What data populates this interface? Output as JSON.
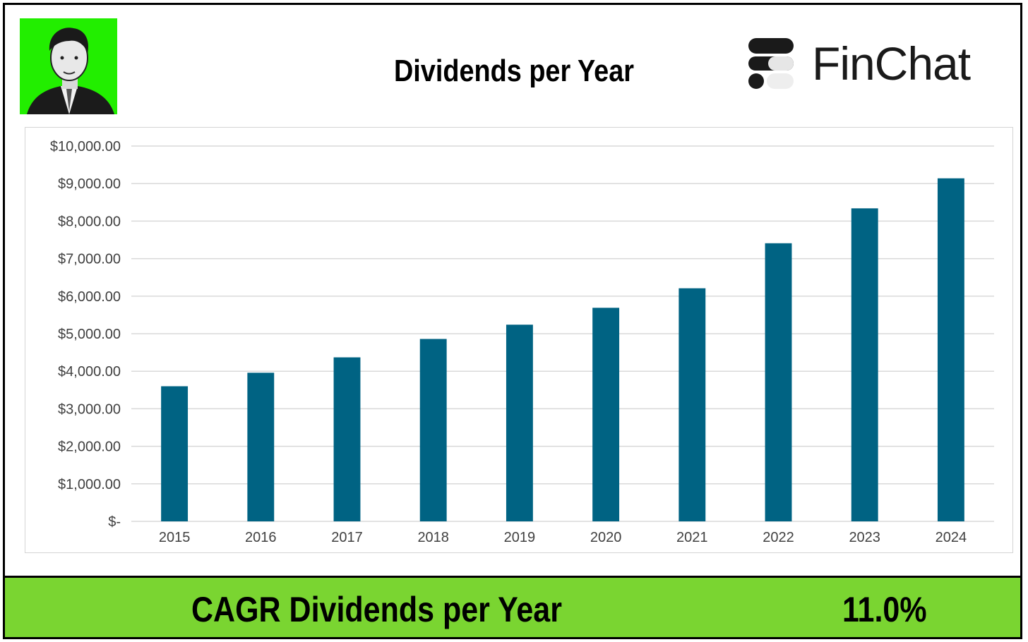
{
  "header": {
    "title": "Dividends per Year",
    "brand": "FinChat"
  },
  "colors": {
    "bar": "#006383",
    "grid": "#d9d9d9",
    "footer_bg": "#7ad531",
    "avatar_bg": "#22ee00"
  },
  "icons": {
    "avatar": "author-portrait",
    "logo": "finchat-logo-icon"
  },
  "chart_data": {
    "type": "bar",
    "title": "Dividends per Year",
    "xlabel": "",
    "ylabel": "",
    "categories": [
      "2015",
      "2016",
      "2017",
      "2018",
      "2019",
      "2020",
      "2021",
      "2022",
      "2023",
      "2024"
    ],
    "values": [
      3600,
      3960,
      4370,
      4860,
      5240,
      5690,
      6210,
      7410,
      8340,
      9140
    ],
    "ylim": [
      0,
      10000
    ],
    "y_ticks": [
      0,
      1000,
      2000,
      3000,
      4000,
      5000,
      6000,
      7000,
      8000,
      9000,
      10000
    ],
    "y_tick_labels": [
      "$-",
      "$1,000.00",
      "$2,000.00",
      "$3,000.00",
      "$4,000.00",
      "$5,000.00",
      "$6,000.00",
      "$7,000.00",
      "$8,000.00",
      "$9,000.00",
      "$10,000.00"
    ],
    "grid": true,
    "legend": "none"
  },
  "footer": {
    "label": "CAGR Dividends per Year",
    "value": "11.0%"
  }
}
